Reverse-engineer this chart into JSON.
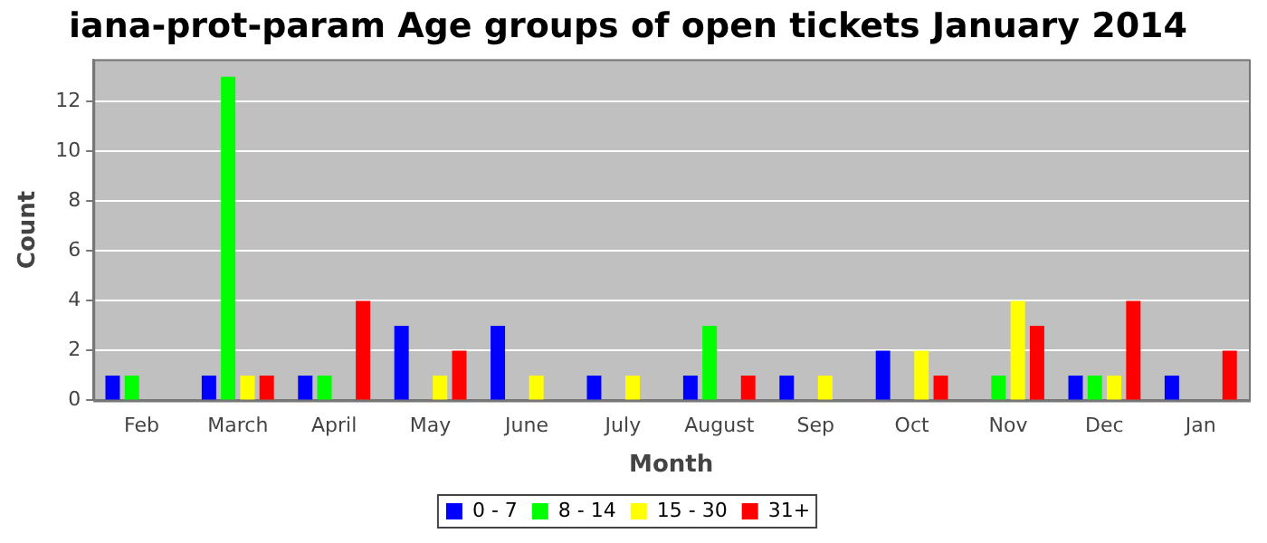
{
  "chart_data": {
    "type": "bar",
    "title": "iana-prot-param Age groups of open tickets January 2014",
    "xlabel": "Month",
    "ylabel": "Count",
    "categories": [
      "Feb",
      "March",
      "April",
      "May",
      "June",
      "July",
      "August",
      "Sep",
      "Oct",
      "Nov",
      "Dec",
      "Jan"
    ],
    "series": [
      {
        "name": "0 - 7",
        "color": "#0000ff",
        "values": [
          1,
          1,
          1,
          3,
          3,
          1,
          1,
          1,
          2,
          0,
          1,
          1
        ]
      },
      {
        "name": "8 - 14",
        "color": "#00ff00",
        "values": [
          1,
          13,
          1,
          0,
          0,
          0,
          3,
          0,
          0,
          1,
          1,
          0
        ]
      },
      {
        "name": "15 - 30",
        "color": "#ffff00",
        "values": [
          0,
          1,
          0,
          1,
          1,
          1,
          0,
          1,
          2,
          4,
          1,
          0
        ]
      },
      {
        "name": "31+",
        "color": "#ff0000",
        "values": [
          0,
          1,
          4,
          2,
          0,
          0,
          1,
          0,
          1,
          3,
          4,
          2
        ]
      }
    ],
    "ylim": [
      0,
      13.7
    ],
    "yticks": [
      0,
      2,
      4,
      6,
      8,
      10,
      12
    ],
    "grid": "y",
    "legend": "bottom"
  }
}
